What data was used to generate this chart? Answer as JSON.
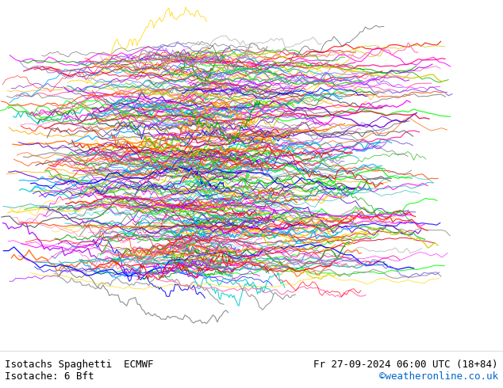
{
  "title_left": "Isotachs Spaghetti  ECMWF",
  "title_right": "Fr 27-09-2024 06:00 UTC (18+84)",
  "subtitle_left": "Isotache: 6 Bft",
  "subtitle_right": "©weatheronline.co.uk",
  "subtitle_right_color": "#0066cc",
  "land_color": "#ccf0cc",
  "ocean_color": "#f0f0f0",
  "coast_color": "#aaaaaa",
  "caption_bg": "#ffffff",
  "caption_text_color": "#000000",
  "fig_width": 6.34,
  "fig_height": 4.9,
  "dpi": 100,
  "map_extent": [
    -80,
    40,
    25,
    75
  ],
  "spaghetti_colors": [
    "#FF0000",
    "#FF6600",
    "#FFAA00",
    "#FFD700",
    "#CCCC00",
    "#00AA00",
    "#00FF00",
    "#00CCCC",
    "#00AAFF",
    "#0000FF",
    "#6600CC",
    "#AA00FF",
    "#FF00FF",
    "#FF69B4",
    "#FF1493",
    "#DC143C",
    "#FF4500",
    "#20B2AA",
    "#7B68EE",
    "#32CD32",
    "#808080",
    "#555555",
    "#999999"
  ]
}
